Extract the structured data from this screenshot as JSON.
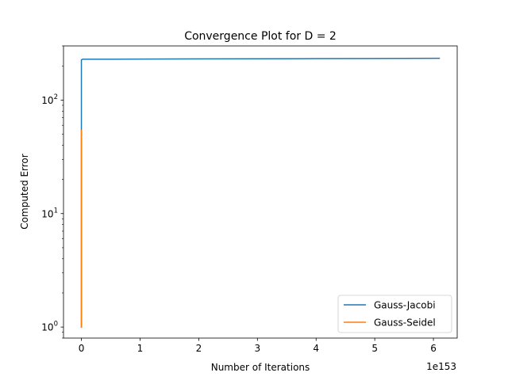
{
  "chart_data": {
    "type": "line",
    "title": "Convergence Plot for D = 2",
    "xlabel": "Number of Iterations",
    "ylabel": "Computed Error",
    "x_offset_label": "1e153",
    "xscale": "linear",
    "yscale": "log",
    "xlim": [
      -0.305,
      6.405
    ],
    "ylim": [
      0.8,
      300
    ],
    "x_ticks": [
      {
        "value": 0,
        "label": "0"
      },
      {
        "value": 1,
        "label": "1"
      },
      {
        "value": 2,
        "label": "2"
      },
      {
        "value": 3,
        "label": "3"
      },
      {
        "value": 4,
        "label": "4"
      },
      {
        "value": 5,
        "label": "5"
      },
      {
        "value": 6,
        "label": "6"
      }
    ],
    "y_ticks": [
      {
        "value": 1,
        "base": "10",
        "exp": "0"
      },
      {
        "value": 10,
        "base": "10",
        "exp": "1"
      },
      {
        "value": 100,
        "base": "10",
        "exp": "2"
      }
    ],
    "grid": false,
    "legend_position": "lower-right",
    "series": [
      {
        "name": "Gauss-Jacobi",
        "color": "#1f77b4",
        "x": [
          0,
          0,
          0.02,
          0.5,
          1,
          2,
          3,
          4,
          5,
          6.1
        ],
        "y": [
          1,
          226,
          229,
          229.4,
          229.8,
          230.5,
          231.2,
          231.9,
          232.6,
          233.4
        ]
      },
      {
        "name": "Gauss-Seidel",
        "color": "#ff7f0e",
        "x": [
          0,
          0
        ],
        "y": [
          1,
          54
        ]
      }
    ]
  }
}
